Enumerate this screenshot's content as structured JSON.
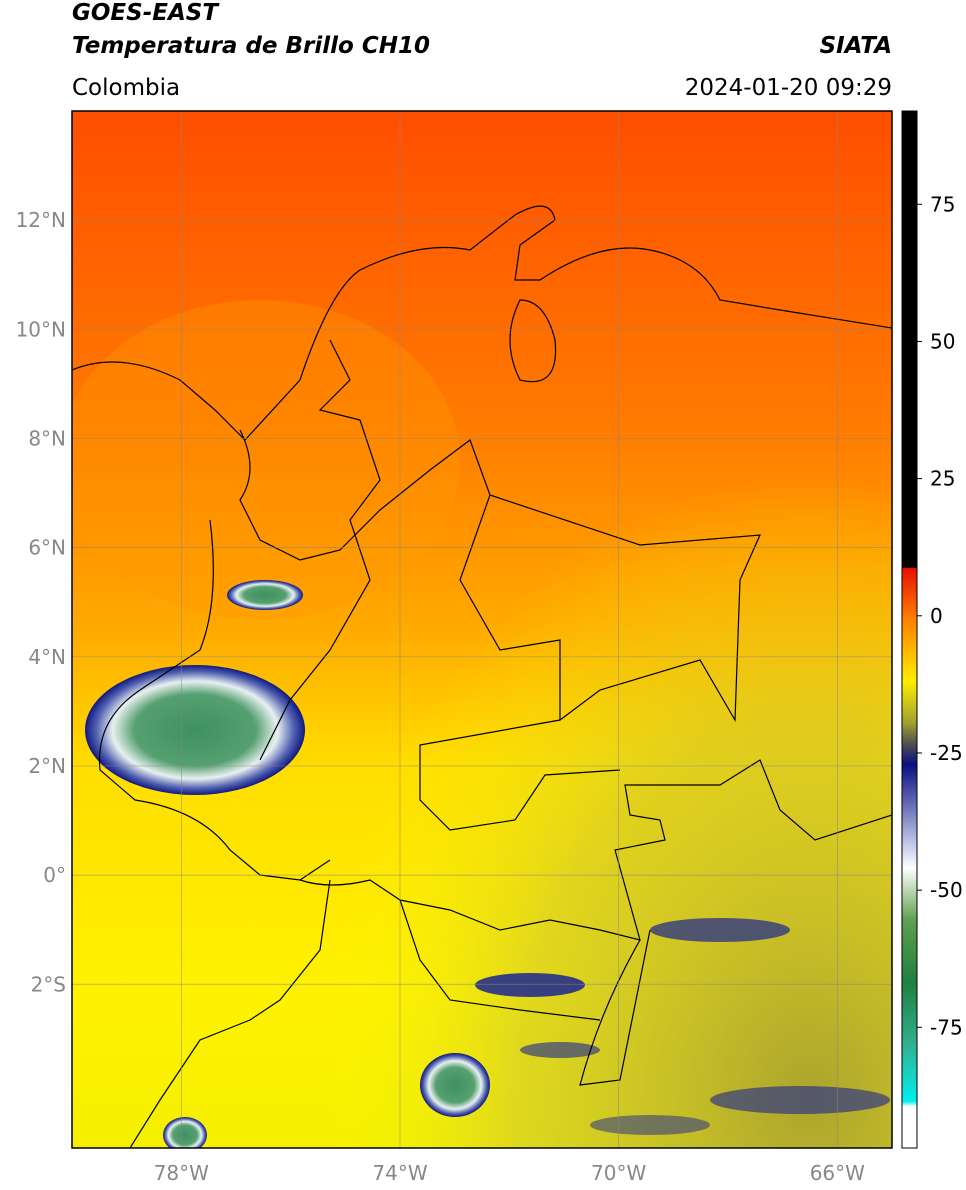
{
  "header": {
    "title": "GOES-EAST",
    "subtitle": "Temperatura de Brillo CH10",
    "region": "Colombia",
    "source": "SIATA",
    "timestamp": "2024-01-20 09:29"
  },
  "map": {
    "lon_range": [
      -80,
      -65
    ],
    "lat_range": [
      -5,
      14
    ],
    "lat_ticks": [
      {
        "value": 12,
        "label": "12°N"
      },
      {
        "value": 10,
        "label": "10°N"
      },
      {
        "value": 8,
        "label": "8°N"
      },
      {
        "value": 6,
        "label": "6°N"
      },
      {
        "value": 4,
        "label": "4°N"
      },
      {
        "value": 2,
        "label": "2°N"
      },
      {
        "value": 0,
        "label": "0°"
      },
      {
        "value": -2,
        "label": "2°S"
      }
    ],
    "lon_ticks": [
      {
        "value": -78,
        "label": "78°W"
      },
      {
        "value": -74,
        "label": "74°W"
      },
      {
        "value": -70,
        "label": "70°W"
      },
      {
        "value": -66,
        "label": "66°W"
      }
    ]
  },
  "colorbar": {
    "range": [
      -97,
      92
    ],
    "ticks": [
      75,
      50,
      25,
      0,
      -25,
      -50,
      -75
    ]
  }
}
